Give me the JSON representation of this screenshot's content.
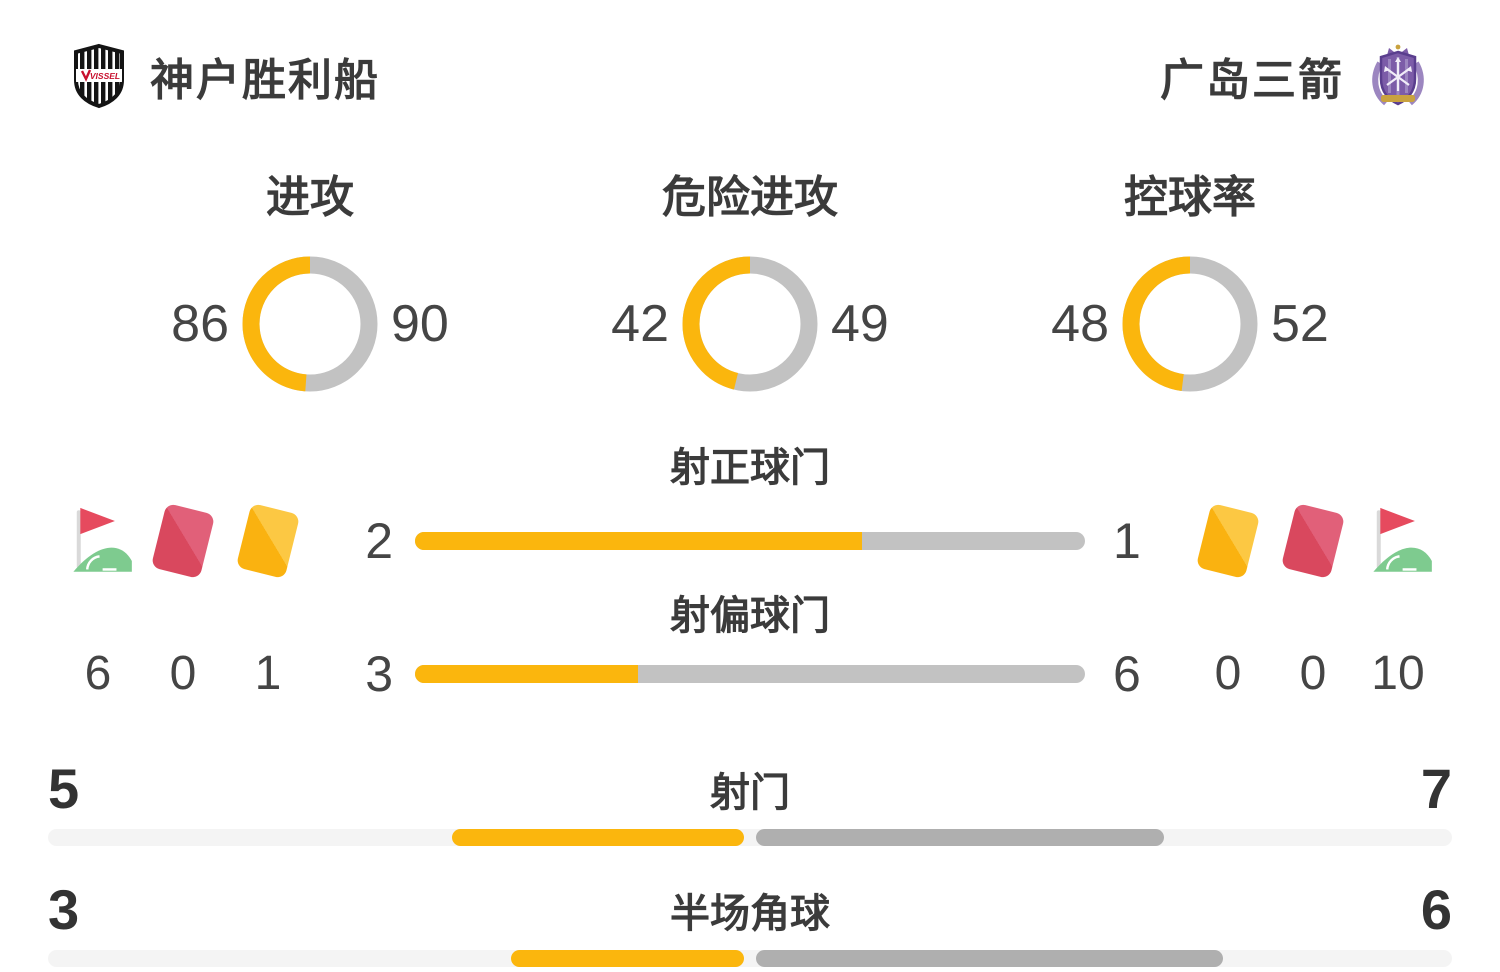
{
  "header": {
    "home_team": {
      "name": "神户胜利船",
      "badge": "vissel-kobe-crest"
    },
    "away_team": {
      "name": "广岛三箭",
      "badge": "sanfrecce-hiroshima-crest"
    }
  },
  "colors": {
    "home_accent_yellow": "#FBB60D",
    "away_gray": "#C2C2C2",
    "summary_away_gray": "#AFAFAF",
    "track_light_gray": "#F4F4F4",
    "text_dark": "#3B3B3B",
    "card_red": "#D9485E",
    "card_yellow": "#FAB210",
    "flag_red": "#E64A5E",
    "flag_green": "#7ECB8F"
  },
  "chart_data": {
    "donuts": [
      {
        "type": "pie",
        "title": "进攻",
        "home": 86,
        "away": 90,
        "home_color": "#FBB60D",
        "away_color": "#C2C2C2"
      },
      {
        "type": "pie",
        "title": "危险进攻",
        "home": 42,
        "away": 49,
        "home_color": "#FBB60D",
        "away_color": "#C2C2C2"
      },
      {
        "type": "pie",
        "title": "控球率",
        "home": 48,
        "away": 52,
        "home_color": "#FBB60D",
        "away_color": "#C2C2C2"
      }
    ],
    "duel_bars": [
      {
        "type": "bar",
        "title": "射正球门",
        "home": 2,
        "away": 1
      },
      {
        "type": "bar",
        "title": "射偏球门",
        "home": 3,
        "away": 6
      }
    ],
    "summary_bars": [
      {
        "type": "bar",
        "title": "射门",
        "home": 5,
        "away": 7
      },
      {
        "type": "bar",
        "title": "半场角球",
        "home": 3,
        "away": 6
      }
    ],
    "cards_corners": {
      "home": {
        "corners": 6,
        "red_cards": 0,
        "yellow_cards": 1
      },
      "away": {
        "corners": 10,
        "red_cards": 0,
        "yellow_cards": 0
      }
    }
  }
}
